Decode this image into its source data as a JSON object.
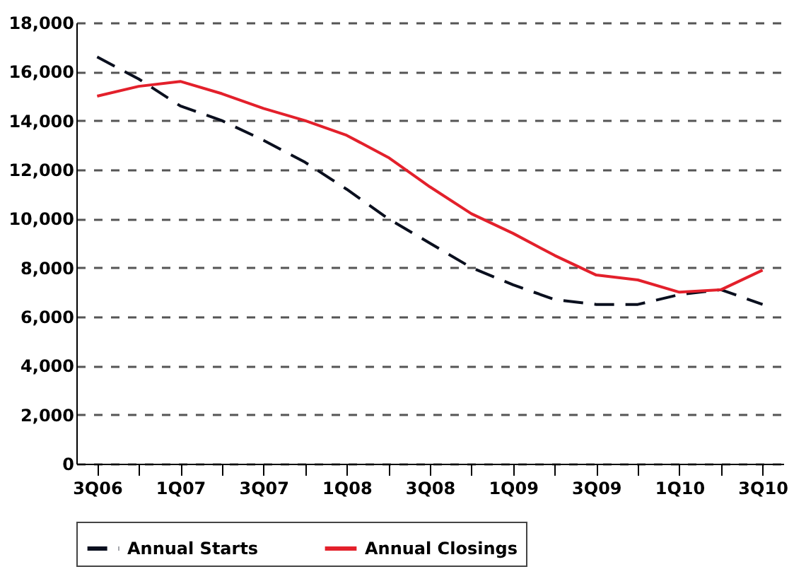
{
  "chart_data": {
    "type": "line",
    "categories": [
      "3Q06",
      null,
      "1Q07",
      null,
      "3Q07",
      null,
      "1Q08",
      null,
      "3Q08",
      null,
      "1Q09",
      null,
      "3Q09",
      null,
      "1Q10",
      null,
      "3Q10"
    ],
    "series": [
      {
        "name": "Annual Starts",
        "color": "#0a0f1e",
        "line_style": "dashed",
        "values": [
          16600,
          15700,
          14600,
          14000,
          13200,
          12300,
          11200,
          10000,
          9000,
          8000,
          7300,
          6700,
          6500,
          6500,
          6900,
          7100,
          6500
        ]
      },
      {
        "name": "Annual Closings",
        "color": "#e3202b",
        "line_style": "solid",
        "values": [
          15000,
          15400,
          15600,
          15100,
          14500,
          14000,
          13400,
          12500,
          11300,
          10200,
          9400,
          8500,
          7700,
          7500,
          7000,
          7100,
          7900
        ]
      }
    ],
    "ylim": [
      0,
      18000
    ],
    "yticks": [
      0,
      {
        "value": 2000,
        "label": "2,000"
      },
      {
        "value": 4000,
        "label": "4,000"
      },
      {
        "value": 6000,
        "label": "6,000"
      },
      {
        "value": 8000,
        "label": "8,000"
      },
      {
        "value": 10000,
        "label": "10,000"
      },
      {
        "value": 12000,
        "label": "12,000"
      },
      {
        "value": 14000,
        "label": "14,000"
      },
      {
        "value": 16000,
        "label": "16,000"
      },
      {
        "value": 18000,
        "label": "18,000"
      }
    ],
    "grid": "y",
    "legend": "bottom",
    "marker": "none"
  }
}
